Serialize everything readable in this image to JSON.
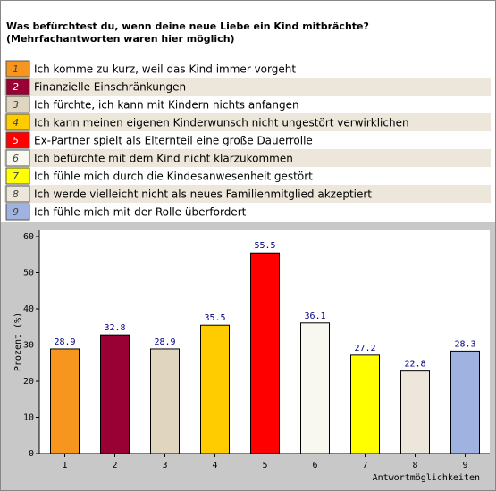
{
  "chart_data": {
    "type": "bar",
    "title": "Was befürchtest du, wenn deine neue Liebe ein Kind mitbrächte?",
    "subtitle": "(Mehrfachantworten waren hier möglich)",
    "categories": [
      "1",
      "2",
      "3",
      "4",
      "5",
      "6",
      "7",
      "8",
      "9"
    ],
    "legend_labels": [
      "Ich komme zu kurz, weil das Kind immer vorgeht",
      "Finanzielle Einschränkungen",
      "Ich fürchte, ich kann mit Kindern nichts anfangen",
      "Ich kann meinen eigenen Kinderwunsch nicht ungestört verwirklichen",
      "Ex-Partner spielt als Elternteil eine große Dauerrolle",
      "Ich befürchte mit dem Kind nicht klarzukommen",
      "Ich fühle mich durch die Kindesanwesenheit gestört",
      "Ich werde vielleicht nicht als neues Familienmitglied akzeptiert",
      "Ich fühle mich mit der Rolle überfordert"
    ],
    "values": [
      28.9,
      32.8,
      28.9,
      35.5,
      55.5,
      36.1,
      27.2,
      22.8,
      28.3
    ],
    "colors": [
      "#f7961e",
      "#990033",
      "#e0d6c0",
      "#ffcc00",
      "#ff0000",
      "#f8f8f0",
      "#ffff00",
      "#ede6da",
      "#a0b2e0"
    ],
    "x_label": "Antwortmöglichkeiten",
    "y_label": "Prozent (%)",
    "ylim": [
      0,
      60
    ],
    "yticks": [
      0,
      10,
      20,
      30,
      40,
      50,
      60
    ],
    "grid": false
  }
}
